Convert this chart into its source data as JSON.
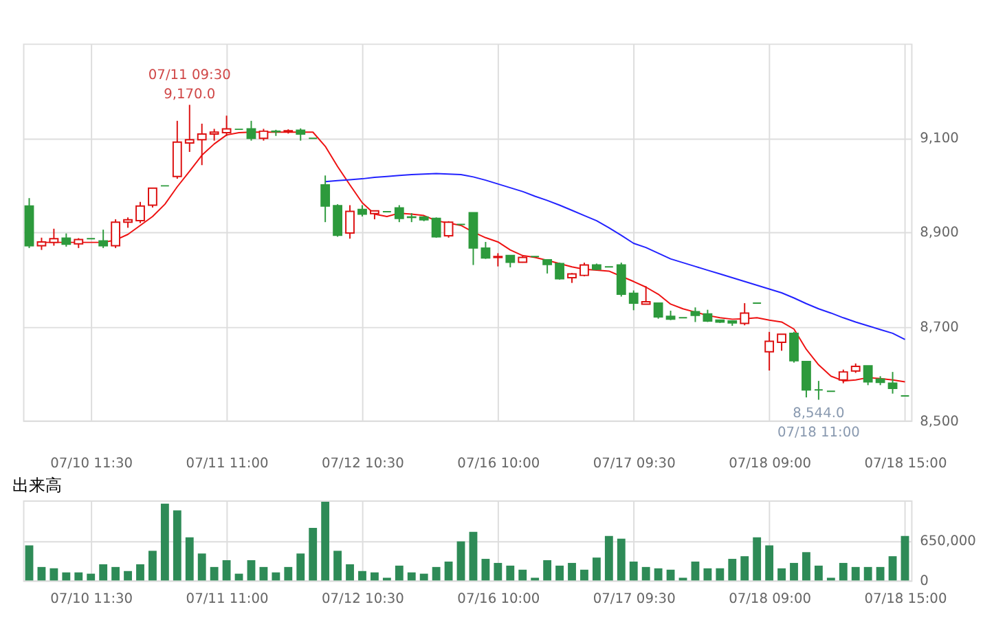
{
  "chart_data": [
    {
      "type": "candlestick",
      "categories": [
        null,
        null,
        null,
        null,
        null,
        "07/10 11:30",
        null,
        null,
        null,
        null,
        null,
        null,
        null,
        null,
        null,
        null,
        "07/11 11:00",
        null,
        null,
        null,
        null,
        null,
        null,
        null,
        null,
        null,
        null,
        "07/12 10:30",
        null,
        null,
        null,
        null,
        null,
        null,
        null,
        null,
        null,
        null,
        "07/16 10:00",
        null,
        null,
        null,
        null,
        null,
        null,
        null,
        null,
        null,
        null,
        "07/17 09:30",
        null,
        null,
        null,
        null,
        null,
        null,
        null,
        null,
        null,
        null,
        "07/18 09:00",
        null,
        null,
        null,
        null,
        null,
        null,
        null,
        null,
        null,
        null,
        "07/18 15:00"
      ],
      "ohlc": [
        [
          8955,
          8972,
          8866,
          8871
        ],
        [
          8871,
          8888,
          8862,
          8879
        ],
        [
          8878,
          8907,
          8871,
          8886
        ],
        [
          8887,
          8897,
          8869,
          8874
        ],
        [
          8875,
          8887,
          8866,
          8884
        ],
        [
          8886,
          8886,
          8886,
          8886
        ],
        [
          8881,
          8905,
          8866,
          8871
        ],
        [
          8871,
          8927,
          8866,
          8921
        ],
        [
          8921,
          8931,
          8909,
          8926
        ],
        [
          8924,
          8964,
          8919,
          8955
        ],
        [
          8957,
          8993,
          8952,
          8993
        ],
        [
          8998,
          8998,
          8998,
          8998
        ],
        [
          9018,
          9136,
          9013,
          9091
        ],
        [
          9089,
          9170,
          9070,
          9096
        ],
        [
          9096,
          9130,
          9042,
          9108
        ],
        [
          9108,
          9119,
          9094,
          9112
        ],
        [
          9111,
          9147,
          9104,
          9119
        ],
        [
          9118,
          9118,
          9118,
          9118
        ],
        [
          9119,
          9136,
          9094,
          9099
        ],
        [
          9099,
          9119,
          9094,
          9114
        ],
        [
          9114,
          9117,
          9104,
          9113
        ],
        [
          9113,
          9118,
          9109,
          9115
        ],
        [
          9116,
          9120,
          9094,
          9108
        ],
        [
          9099,
          9099,
          9099,
          9099
        ],
        [
          9000,
          9020,
          8921,
          8955
        ],
        [
          8956,
          8959,
          8890,
          8893
        ],
        [
          8898,
          8957,
          8886,
          8944
        ],
        [
          8948,
          8957,
          8933,
          8938
        ],
        [
          8939,
          8945,
          8927,
          8945
        ],
        [
          8943,
          8943,
          8943,
          8943
        ],
        [
          8951,
          8957,
          8921,
          8929
        ],
        [
          8932,
          8940,
          8921,
          8931
        ],
        [
          8932,
          8934,
          8923,
          8926
        ],
        [
          8929,
          8931,
          8888,
          8890
        ],
        [
          8892,
          8923,
          8888,
          8921
        ],
        [
          8916,
          8916,
          8916,
          8916
        ],
        [
          8941,
          8941,
          8830,
          8866
        ],
        [
          8866,
          8879,
          8843,
          8845
        ],
        [
          8846,
          8855,
          8827,
          8848
        ],
        [
          8850,
          8850,
          8825,
          8836
        ],
        [
          8836,
          8849,
          8835,
          8846
        ],
        [
          8848,
          8848,
          8848,
          8848
        ],
        [
          8841,
          8841,
          8812,
          8831
        ],
        [
          8833,
          8835,
          8799,
          8801
        ],
        [
          8803,
          8813,
          8792,
          8811
        ],
        [
          8808,
          8835,
          8806,
          8830
        ],
        [
          8830,
          8833,
          8819,
          8821
        ],
        [
          8826,
          8826,
          8826,
          8826
        ],
        [
          8830,
          8835,
          8763,
          8768
        ],
        [
          8770,
          8776,
          8734,
          8749
        ],
        [
          8747,
          8785,
          8747,
          8752
        ],
        [
          8749,
          8749,
          8716,
          8720
        ],
        [
          8721,
          8733,
          8713,
          8715
        ],
        [
          8718,
          8718,
          8718,
          8718
        ],
        [
          8731,
          8740,
          8709,
          8723
        ],
        [
          8726,
          8735,
          8709,
          8711
        ],
        [
          8713,
          8713,
          8707,
          8709
        ],
        [
          8711,
          8711,
          8701,
          8707
        ],
        [
          8706,
          8749,
          8702,
          8728
        ],
        [
          8749,
          8749,
          8749,
          8749
        ],
        [
          8646,
          8688,
          8606,
          8668
        ],
        [
          8666,
          8683,
          8648,
          8683
        ],
        [
          8685,
          8688,
          8623,
          8627
        ],
        [
          8625,
          8625,
          8549,
          8565
        ],
        [
          8565,
          8584,
          8544,
          8565
        ],
        [
          8562,
          8562,
          8562,
          8562
        ],
        [
          8586,
          8608,
          8579,
          8603
        ],
        [
          8605,
          8621,
          8601,
          8615
        ],
        [
          8616,
          8616,
          8575,
          8582
        ],
        [
          8588,
          8594,
          8575,
          8581
        ],
        [
          8579,
          8603,
          8557,
          8568
        ],
        [
          8552,
          8552,
          8552,
          8552
        ]
      ],
      "colors": [
        "#2d9a3c",
        "#dd1111",
        "#dd1111",
        "#2d9a3c",
        "#dd1111",
        "#2d9a3c",
        "#2d9a3c",
        "#dd1111",
        "#dd1111",
        "#dd1111",
        "#dd1111",
        "#2d9a3c",
        "#dd1111",
        "#dd1111",
        "#dd1111",
        "#dd1111",
        "#dd1111",
        "#2d9a3c",
        "#2d9a3c",
        "#dd1111",
        "#2d9a3c",
        "#dd1111",
        "#2d9a3c",
        "#2d9a3c",
        "#2d9a3c",
        "#2d9a3c",
        "#dd1111",
        "#2d9a3c",
        "#dd1111",
        "#2d9a3c",
        "#2d9a3c",
        "#2d9a3c",
        "#2d9a3c",
        "#2d9a3c",
        "#dd1111",
        "#2d9a3c",
        "#2d9a3c",
        "#2d9a3c",
        "#dd1111",
        "#2d9a3c",
        "#dd1111",
        "#2d9a3c",
        "#2d9a3c",
        "#2d9a3c",
        "#dd1111",
        "#dd1111",
        "#2d9a3c",
        "#2d9a3c",
        "#2d9a3c",
        "#2d9a3c",
        "#dd1111",
        "#2d9a3c",
        "#2d9a3c",
        "#2d9a3c",
        "#2d9a3c",
        "#2d9a3c",
        "#2d9a3c",
        "#2d9a3c",
        "#dd1111",
        "#2d9a3c",
        "#dd1111",
        "#dd1111",
        "#2d9a3c",
        "#2d9a3c",
        "#2d9a3c",
        "#2d9a3c",
        "#dd1111",
        "#dd1111",
        "#2d9a3c",
        "#2d9a3c",
        "#2d9a3c",
        "#2d9a3c"
      ],
      "series": [
        {
          "type": "line",
          "color": "#ee1111",
          "values": [
            null,
            8878,
            8878,
            8878,
            8878,
            8878,
            8878,
            8883,
            8895,
            8914,
            8933,
            8959,
            8996,
            9029,
            9063,
            9087,
            9106,
            9111,
            9112,
            9112,
            9112,
            9112,
            9112,
            9112,
            9082,
            9039,
            9000,
            8962,
            8938,
            8933,
            8940,
            8938,
            8935,
            8924,
            8919,
            8914,
            8900,
            8888,
            8879,
            8862,
            8850,
            8846,
            8840,
            8833,
            8826,
            8821,
            8819,
            8817,
            8806,
            8795,
            8783,
            8768,
            8747,
            8737,
            8730,
            8723,
            8718,
            8715,
            8716,
            8718,
            8713,
            8709,
            8694,
            8651,
            8618,
            8594,
            8584,
            8586,
            8591,
            8589,
            8586,
            8582
          ]
        },
        {
          "type": "line",
          "color": "#2222ff",
          "values": [
            null,
            null,
            null,
            null,
            null,
            null,
            null,
            null,
            null,
            null,
            null,
            null,
            null,
            null,
            null,
            null,
            null,
            null,
            null,
            null,
            null,
            null,
            null,
            null,
            9007,
            9009,
            9011,
            9013,
            9016,
            9018,
            9020,
            9022,
            9023,
            9024,
            9023,
            9022,
            9017,
            9010,
            9002,
            8994,
            8986,
            8976,
            8967,
            8957,
            8946,
            8935,
            8924,
            8909,
            8893,
            8876,
            8867,
            8855,
            8843,
            8835,
            8827,
            8819,
            8811,
            8803,
            8795,
            8787,
            8779,
            8771,
            8760,
            8748,
            8737,
            8728,
            8718,
            8709,
            8701,
            8693,
            8685,
            8672
          ]
        }
      ],
      "ylim": [
        8500,
        9300
      ],
      "yticks": [
        {
          "value": 8500,
          "label": "8,500"
        },
        {
          "value": 8700,
          "label": "8,700"
        },
        {
          "value": 8900,
          "label": "8,900"
        },
        {
          "value": 9100,
          "label": "9,100"
        }
      ],
      "grid": true,
      "annotations": [
        {
          "text": "07/11 09:30",
          "y": 9170
        },
        {
          "text": "9,170.0",
          "y": 9170
        },
        {
          "text": "8,544.0",
          "y": 8544
        },
        {
          "text": "07/18 11:00",
          "y": 8544
        }
      ]
    },
    {
      "type": "bar",
      "title": "出来高",
      "categories": [
        null,
        null,
        null,
        null,
        null,
        "07/10 11:30",
        null,
        null,
        null,
        null,
        null,
        null,
        null,
        null,
        null,
        null,
        "07/11 11:00",
        null,
        null,
        null,
        null,
        null,
        null,
        null,
        null,
        null,
        null,
        "07/12 10:30",
        null,
        null,
        null,
        null,
        null,
        null,
        null,
        null,
        null,
        null,
        "07/16 10:00",
        null,
        null,
        null,
        null,
        null,
        null,
        null,
        null,
        null,
        null,
        "07/17 09:30",
        null,
        null,
        null,
        null,
        null,
        null,
        null,
        null,
        null,
        null,
        "07/18 09:00",
        null,
        null,
        null,
        null,
        null,
        null,
        null,
        null,
        null,
        null,
        "07/18 15:00"
      ],
      "values": [
        570000,
        219000,
        197000,
        131000,
        131000,
        110000,
        263000,
        219000,
        153000,
        263000,
        482000,
        1249000,
        1139000,
        701000,
        438000,
        219000,
        329000,
        110000,
        329000,
        219000,
        131000,
        219000,
        438000,
        854000,
        1280000,
        482000,
        263000,
        153000,
        131000,
        44000,
        241000,
        131000,
        110000,
        219000,
        307000,
        635000,
        789000,
        351000,
        285000,
        241000,
        175000,
        44000,
        329000,
        241000,
        285000,
        175000,
        372000,
        723000,
        679000,
        307000,
        219000,
        197000,
        175000,
        44000,
        307000,
        197000,
        197000,
        351000,
        394000,
        701000,
        570000,
        197000,
        285000,
        460000,
        241000,
        44000,
        285000,
        219000,
        219000,
        219000,
        394000,
        723000
      ],
      "color": "#2e8b57",
      "ylim": [
        0,
        1300000
      ],
      "yticks": [
        0,
        {
          "value": 650000,
          "label": "650,000"
        }
      ],
      "grid": true
    }
  ]
}
